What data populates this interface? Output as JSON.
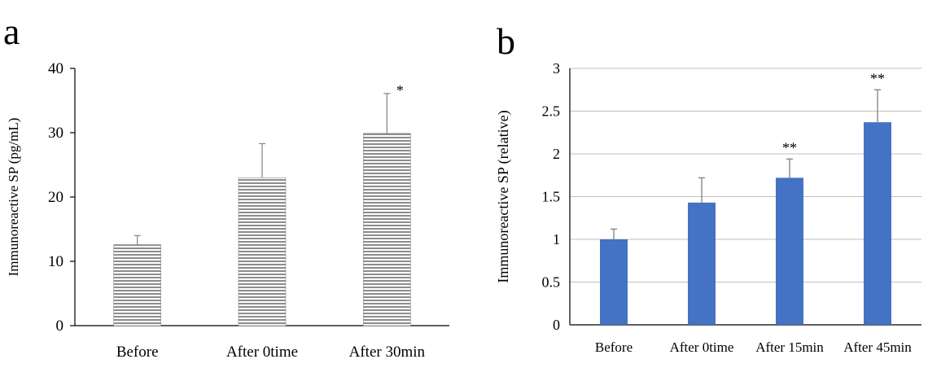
{
  "chart_data": [
    {
      "panel": "a",
      "type": "bar",
      "categories": [
        "Before",
        "After 0time",
        "After 30min"
      ],
      "values": [
        12.6,
        23.0,
        29.9
      ],
      "errors": [
        1.4,
        5.3,
        6.2
      ],
      "annotations": [
        "",
        "",
        "*"
      ],
      "ylabel": "Immunoreactive SP (pg/mL)",
      "ylim": [
        0,
        40
      ],
      "yticks": [
        0,
        10,
        20,
        30,
        40
      ],
      "grid": false,
      "bar_fill": "hatched-horizontal-gray",
      "colors": {
        "bar": "#8c8c8c",
        "error": "#8c8c8c",
        "axis": "#000000"
      }
    },
    {
      "panel": "b",
      "type": "bar",
      "categories": [
        "Before",
        "After 0time",
        "After 15min",
        "After 45min"
      ],
      "values": [
        1.0,
        1.43,
        1.72,
        2.37
      ],
      "errors": [
        0.12,
        0.29,
        0.22,
        0.38
      ],
      "annotations": [
        "",
        "",
        "**",
        "**"
      ],
      "ylabel": "Immunoreactive SP (relative)",
      "ylim": [
        0,
        3
      ],
      "yticks": [
        0,
        0.5,
        1,
        1.5,
        2,
        2.5,
        3
      ],
      "grid": true,
      "colors": {
        "bar": "#4472c4",
        "error": "#808080",
        "grid": "#bfbfbf",
        "axis": "#000000"
      }
    }
  ]
}
